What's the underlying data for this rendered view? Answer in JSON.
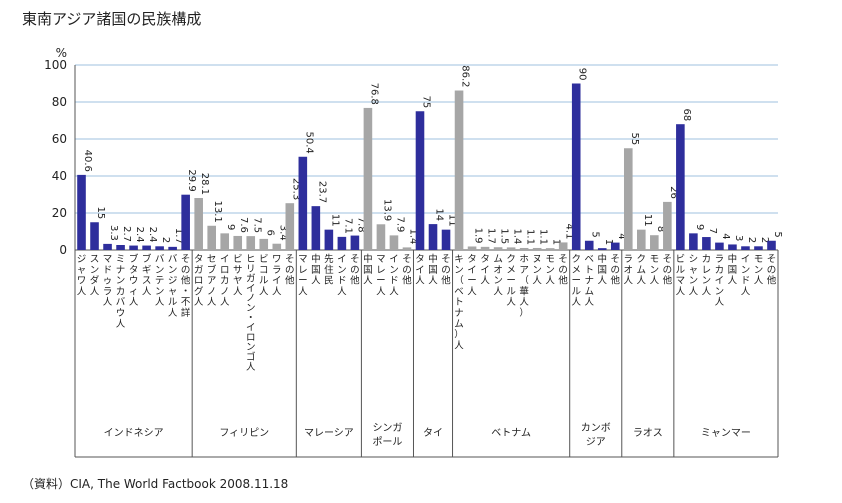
{
  "chart_data": {
    "type": "bar",
    "title": "東南アジア諸国の民族構成",
    "unit": "%",
    "ylim": [
      0,
      100
    ],
    "yticks": [
      0,
      20,
      40,
      60,
      80,
      100
    ],
    "grid": true,
    "legend": "none",
    "colors": {
      "blue": "#2e2e9c",
      "gray": "#a6a6a6"
    },
    "source": "（資料）CIA, The World Factbook 2008.11.18",
    "groups": [
      {
        "name": "インドネシア",
        "color": "blue",
        "categories": [
          "ジャワ人",
          "スンダ人",
          "マドゥラ人",
          "ミナンカバウ人",
          "ブタウィ人",
          "ブギス人",
          "バンテン人",
          "バンジャル人",
          "その他・不詳"
        ],
        "values": [
          40.6,
          15,
          3.3,
          2.7,
          2.4,
          2.4,
          2,
          1.7,
          29.9
        ]
      },
      {
        "name": "フィリピン",
        "color": "gray",
        "categories": [
          "タガログ人",
          "セブアノ人",
          "イロカノ人",
          "ビサヤ人",
          "ヒリガイノン・イロンゴ人",
          "ビコル人",
          "ワライ人",
          "その他"
        ],
        "values": [
          28.1,
          13.1,
          9,
          7.6,
          7.5,
          6,
          3.4,
          25.3
        ]
      },
      {
        "name": "マレーシア",
        "color": "blue",
        "categories": [
          "マレー人",
          "中国人",
          "先住民",
          "インド人",
          "その他"
        ],
        "values": [
          50.4,
          23.7,
          11,
          7.1,
          7.8
        ]
      },
      {
        "name": "シンガポール",
        "color": "gray",
        "categories": [
          "中国人",
          "マレー人",
          "インド人",
          "その他"
        ],
        "values": [
          76.8,
          13.9,
          7.9,
          1.4
        ]
      },
      {
        "name": "タイ",
        "color": "blue",
        "categories": [
          "タイ人",
          "中国人",
          "その他"
        ],
        "values": [
          75,
          14,
          11
        ]
      },
      {
        "name": "ベトナム",
        "color": "gray",
        "categories": [
          "キン（ベトナム）人",
          "タイー人",
          "タイ人",
          "ムオン人",
          "クメール人",
          "ホア（華人）",
          "ヌン人",
          "モン人",
          "その他"
        ],
        "values": [
          86.2,
          1.9,
          1.7,
          1.5,
          1.4,
          1.1,
          1.1,
          1,
          4.1
        ]
      },
      {
        "name": "カンボジア",
        "color": "blue",
        "categories": [
          "クメール人",
          "ベトナム人",
          "中国人",
          "その他"
        ],
        "values": [
          90,
          5,
          1,
          4
        ]
      },
      {
        "name": "ラオス",
        "color": "gray",
        "categories": [
          "ラオ人",
          "クム人",
          "モン人",
          "その他"
        ],
        "values": [
          55,
          11,
          8,
          26
        ]
      },
      {
        "name": "ミャンマー",
        "color": "blue",
        "categories": [
          "ビルマ人",
          "シャン人",
          "カレン人",
          "ラカイン人",
          "中国人",
          "インド人",
          "モン人",
          "その他"
        ],
        "values": [
          68,
          9,
          7,
          4,
          3,
          2,
          2,
          5
        ]
      }
    ]
  }
}
